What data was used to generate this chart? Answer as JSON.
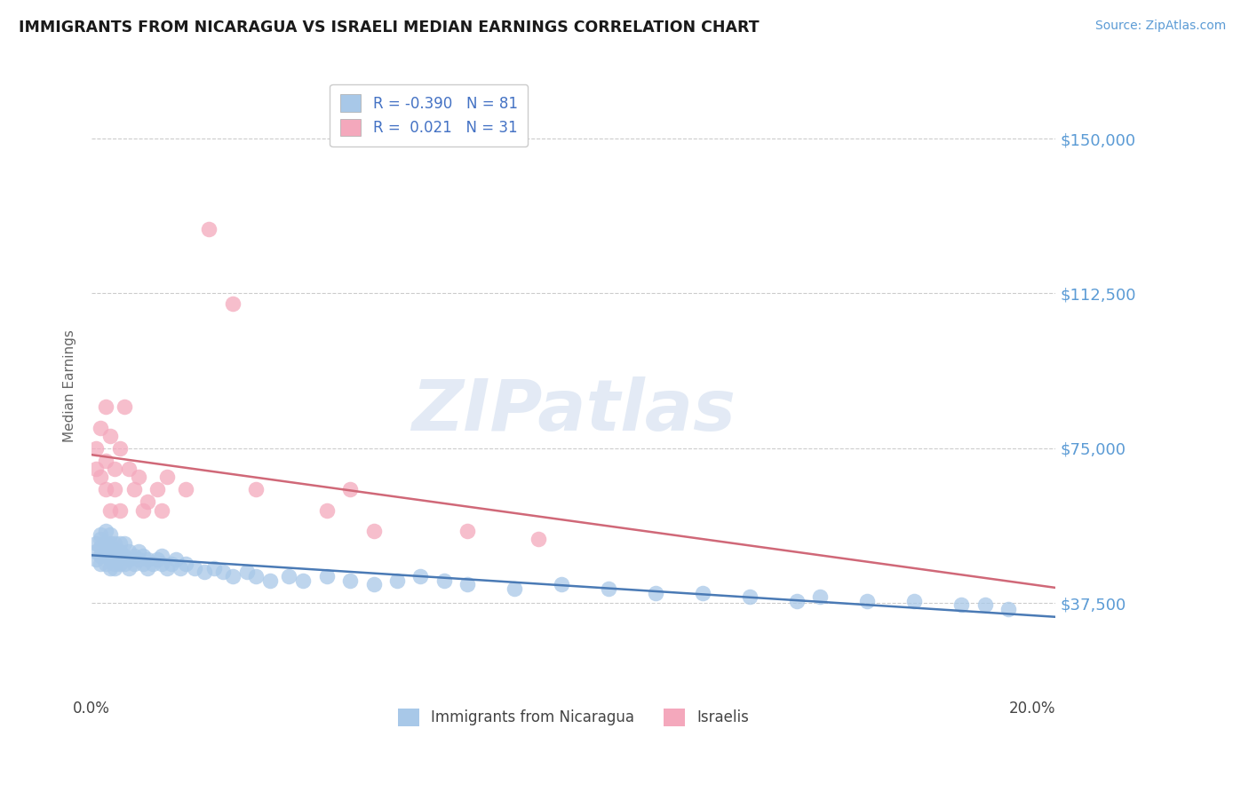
{
  "title": "IMMIGRANTS FROM NICARAGUA VS ISRAELI MEDIAN EARNINGS CORRELATION CHART",
  "source": "Source: ZipAtlas.com",
  "ylabel": "Median Earnings",
  "xlim": [
    0.0,
    0.205
  ],
  "ylim": [
    15000,
    165000
  ],
  "yticks": [
    0,
    37500,
    75000,
    112500,
    150000
  ],
  "xticks": [
    0.0,
    0.05,
    0.1,
    0.15,
    0.2
  ],
  "xtick_labels": [
    "0.0%",
    "",
    "",
    "",
    "20.0%"
  ],
  "blue_R": -0.39,
  "blue_N": 81,
  "pink_R": 0.021,
  "pink_N": 31,
  "blue_color": "#a8c8e8",
  "pink_color": "#f4a8bc",
  "blue_line_color": "#4a7ab5",
  "pink_line_color": "#d06878",
  "axis_label_color": "#5b9bd5",
  "watermark": "ZIPatlas",
  "blue_x": [
    0.001,
    0.001,
    0.001,
    0.002,
    0.002,
    0.002,
    0.002,
    0.002,
    0.003,
    0.003,
    0.003,
    0.003,
    0.003,
    0.004,
    0.004,
    0.004,
    0.004,
    0.004,
    0.004,
    0.005,
    0.005,
    0.005,
    0.005,
    0.005,
    0.006,
    0.006,
    0.006,
    0.006,
    0.007,
    0.007,
    0.007,
    0.008,
    0.008,
    0.008,
    0.009,
    0.009,
    0.01,
    0.01,
    0.011,
    0.011,
    0.012,
    0.012,
    0.013,
    0.014,
    0.015,
    0.015,
    0.016,
    0.017,
    0.018,
    0.019,
    0.02,
    0.022,
    0.024,
    0.026,
    0.028,
    0.03,
    0.033,
    0.035,
    0.038,
    0.042,
    0.045,
    0.05,
    0.055,
    0.06,
    0.065,
    0.07,
    0.075,
    0.08,
    0.09,
    0.1,
    0.11,
    0.12,
    0.14,
    0.155,
    0.165,
    0.175,
    0.185,
    0.19,
    0.195,
    0.13,
    0.15
  ],
  "blue_y": [
    52000,
    50000,
    48000,
    54000,
    51000,
    49000,
    47000,
    53000,
    52000,
    49000,
    47000,
    55000,
    50000,
    51000,
    48000,
    52000,
    46000,
    50000,
    54000,
    50000,
    47000,
    52000,
    48000,
    46000,
    49000,
    52000,
    47000,
    50000,
    49000,
    52000,
    47000,
    50000,
    48000,
    46000,
    49000,
    47000,
    50000,
    48000,
    49000,
    47000,
    48000,
    46000,
    47000,
    48000,
    47000,
    49000,
    46000,
    47000,
    48000,
    46000,
    47000,
    46000,
    45000,
    46000,
    45000,
    44000,
    45000,
    44000,
    43000,
    44000,
    43000,
    44000,
    43000,
    42000,
    43000,
    44000,
    43000,
    42000,
    41000,
    42000,
    41000,
    40000,
    39000,
    39000,
    38000,
    38000,
    37000,
    37000,
    36000,
    40000,
    38000
  ],
  "pink_x": [
    0.001,
    0.001,
    0.002,
    0.002,
    0.003,
    0.003,
    0.003,
    0.004,
    0.004,
    0.005,
    0.005,
    0.006,
    0.006,
    0.007,
    0.008,
    0.009,
    0.01,
    0.011,
    0.012,
    0.014,
    0.015,
    0.016,
    0.02,
    0.025,
    0.03,
    0.035,
    0.05,
    0.055,
    0.06,
    0.08,
    0.095
  ],
  "pink_y": [
    70000,
    75000,
    68000,
    80000,
    65000,
    72000,
    85000,
    60000,
    78000,
    65000,
    70000,
    60000,
    75000,
    85000,
    70000,
    65000,
    68000,
    60000,
    62000,
    65000,
    60000,
    68000,
    65000,
    128000,
    110000,
    65000,
    60000,
    65000,
    55000,
    55000,
    53000
  ]
}
